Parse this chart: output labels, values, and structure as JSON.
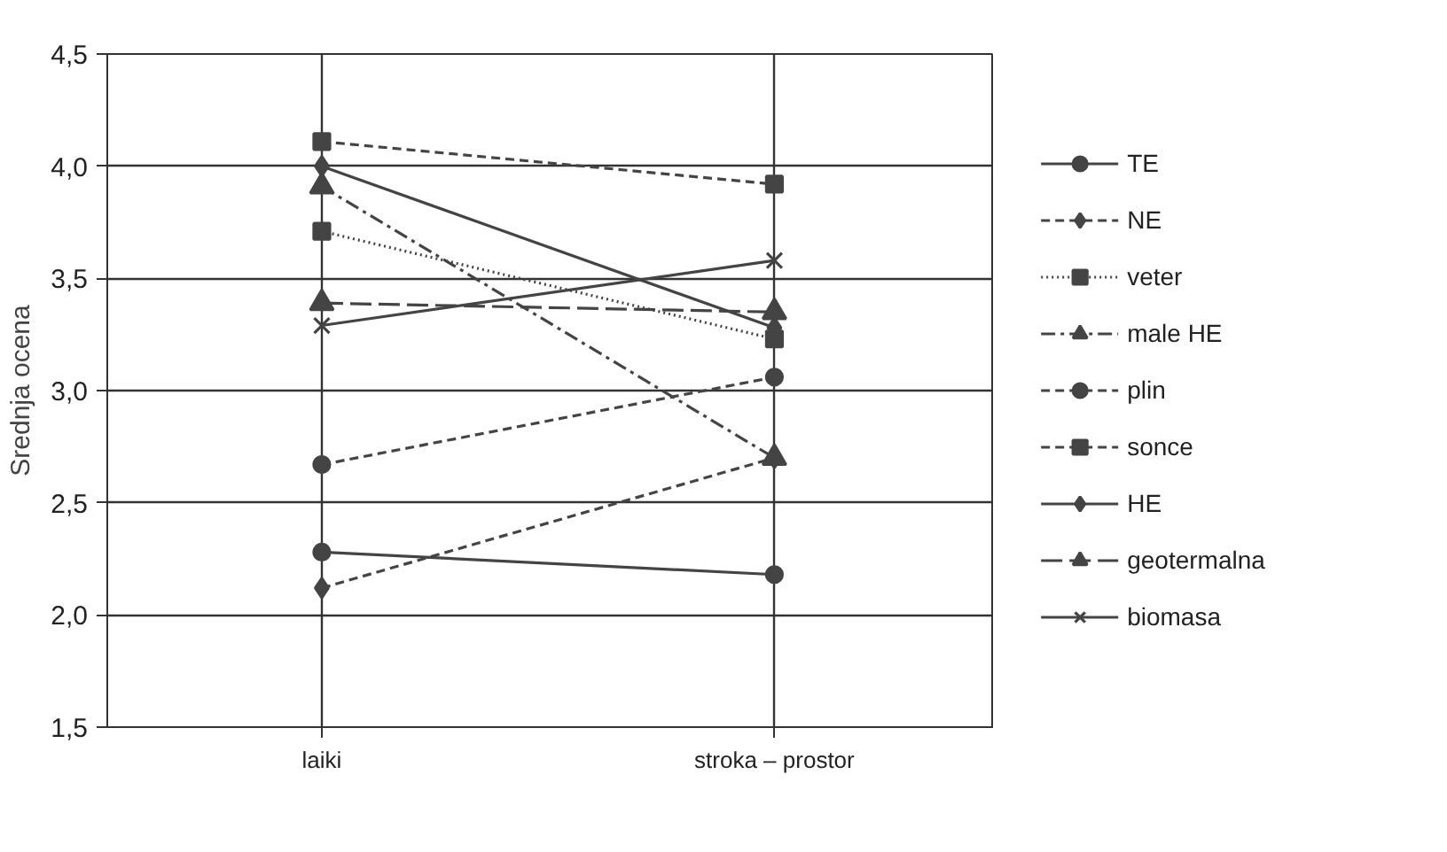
{
  "chart_data": {
    "type": "line",
    "ylabel": "Srednja ocena",
    "categories": [
      "laiki",
      "stroka – prostor"
    ],
    "ylim": [
      1.5,
      4.5
    ],
    "yticks": [
      {
        "value": 1.5,
        "label": "1,5"
      },
      {
        "value": 2.0,
        "label": "2,0"
      },
      {
        "value": 2.5,
        "label": "2,5"
      },
      {
        "value": 3.0,
        "label": "3,0"
      },
      {
        "value": 3.5,
        "label": "3,5"
      },
      {
        "value": 4.0,
        "label": "4,0"
      },
      {
        "value": 4.5,
        "label": "4,5"
      }
    ],
    "grid": true,
    "legend": "right",
    "series": [
      {
        "name": "TE",
        "color": "#444444",
        "marker": "circle",
        "line_style": "solid",
        "values": [
          2.28,
          2.18
        ]
      },
      {
        "name": "NE",
        "color": "#444444",
        "marker": "diamond",
        "line_style": "dashed",
        "values": [
          2.12,
          2.7
        ]
      },
      {
        "name": "veter",
        "color": "#444444",
        "marker": "square",
        "line_style": "dotted",
        "values": [
          3.71,
          3.23
        ]
      },
      {
        "name": "male HE",
        "color": "#444444",
        "marker": "triangle",
        "line_style": "dashdot",
        "values": [
          3.91,
          2.7
        ]
      },
      {
        "name": "plin",
        "color": "#444444",
        "marker": "circle",
        "line_style": "dashed",
        "values": [
          2.67,
          3.06
        ]
      },
      {
        "name": "sonce",
        "color": "#444444",
        "marker": "square",
        "line_style": "dashed",
        "values": [
          4.11,
          3.92
        ]
      },
      {
        "name": "HE",
        "color": "#444444",
        "marker": "diamond",
        "line_style": "solid",
        "values": [
          4.0,
          3.28
        ]
      },
      {
        "name": "geotermalna",
        "color": "#444444",
        "marker": "triangle",
        "line_style": "longdash",
        "values": [
          3.39,
          3.35
        ]
      },
      {
        "name": "biomasa",
        "color": "#444444",
        "marker": "x",
        "line_style": "solid",
        "values": [
          3.29,
          3.58
        ]
      }
    ]
  }
}
